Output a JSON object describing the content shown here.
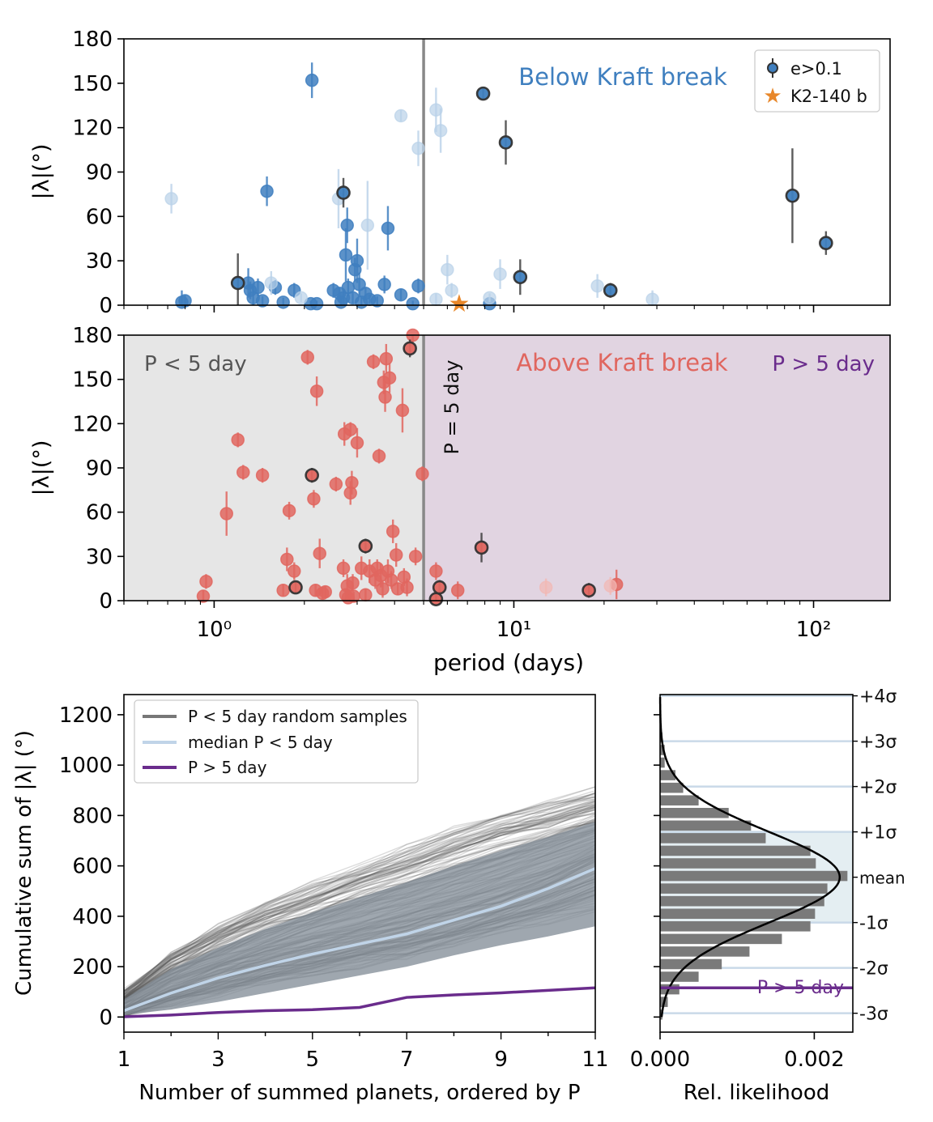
{
  "chart_data": [
    {
      "type": "scatter",
      "panel": "top",
      "xscale": "log",
      "xlim": [
        0.5,
        180
      ],
      "ylim": [
        0,
        180
      ],
      "ylabel": "|λ|(°)",
      "yticks": [
        "0",
        "30",
        "60",
        "90",
        "120",
        "150",
        "180"
      ],
      "annotations": {
        "title": "Below Kraft break"
      },
      "legend": {
        "placement": "top-right",
        "items": [
          "e>0.1",
          "K2-140 b"
        ]
      },
      "vline_x": 5,
      "colors": {
        "points": "#3f7fbf",
        "faded": "#b9d1e8",
        "eccentric_edge": "#333333",
        "star": "#e8872a"
      },
      "series": [
        {
          "name": "main",
          "points": [
            {
              "x": 0.78,
              "y": 2,
              "e": 8
            },
            {
              "x": 0.8,
              "y": 3,
              "e": 4
            },
            {
              "x": 1.3,
              "y": 15,
              "e": 10
            },
            {
              "x": 1.32,
              "y": 10,
              "e": 6
            },
            {
              "x": 1.35,
              "y": 5,
              "e": 8
            },
            {
              "x": 1.4,
              "y": 12,
              "e": 6
            },
            {
              "x": 1.45,
              "y": 3,
              "e": 3
            },
            {
              "x": 1.5,
              "y": 77,
              "e": 10
            },
            {
              "x": 1.6,
              "y": 12,
              "e": 5
            },
            {
              "x": 1.7,
              "y": 2,
              "e": 3
            },
            {
              "x": 1.85,
              "y": 10,
              "e": 5
            },
            {
              "x": 2.1,
              "y": 1,
              "e": 2
            },
            {
              "x": 2.12,
              "y": 152,
              "e": 12
            },
            {
              "x": 2.2,
              "y": 1,
              "e": 2
            },
            {
              "x": 2.5,
              "y": 10,
              "e": 5
            },
            {
              "x": 2.62,
              "y": 8,
              "e": 4
            },
            {
              "x": 2.65,
              "y": 2,
              "e": 3
            },
            {
              "x": 2.7,
              "y": 5,
              "e": 4
            },
            {
              "x": 2.75,
              "y": 34,
              "e": 18
            },
            {
              "x": 2.78,
              "y": 54,
              "e": 12
            },
            {
              "x": 2.8,
              "y": 12,
              "e": 6
            },
            {
              "x": 2.9,
              "y": 5,
              "e": 4
            },
            {
              "x": 2.95,
              "y": 24,
              "e": 8
            },
            {
              "x": 3.0,
              "y": 30,
              "e": 15
            },
            {
              "x": 3.05,
              "y": 14,
              "e": 8
            },
            {
              "x": 3.1,
              "y": 2,
              "e": 3
            },
            {
              "x": 3.2,
              "y": 8,
              "e": 4
            },
            {
              "x": 3.3,
              "y": 4,
              "e": 3
            },
            {
              "x": 3.5,
              "y": 3,
              "e": 3
            },
            {
              "x": 3.7,
              "y": 14,
              "e": 6
            },
            {
              "x": 3.8,
              "y": 52,
              "e": 15
            },
            {
              "x": 4.2,
              "y": 7,
              "e": 4
            },
            {
              "x": 4.6,
              "y": 1,
              "e": 2
            },
            {
              "x": 4.8,
              "y": 13,
              "e": 5
            },
            {
              "x": 8.3,
              "y": 1,
              "e": 3
            }
          ]
        },
        {
          "name": "faded",
          "points": [
            {
              "x": 0.72,
              "y": 72,
              "e": 10
            },
            {
              "x": 1.55,
              "y": 15,
              "e": 8
            },
            {
              "x": 1.95,
              "y": 5,
              "e": 3
            },
            {
              "x": 2.6,
              "y": 72,
              "e": 20
            },
            {
              "x": 3.25,
              "y": 54,
              "e": 30
            },
            {
              "x": 4.2,
              "y": 128,
              "e": 4
            },
            {
              "x": 4.8,
              "y": 106,
              "e": 12
            },
            {
              "x": 5.5,
              "y": 132,
              "e": 15
            },
            {
              "x": 5.7,
              "y": 118,
              "e": 15
            },
            {
              "x": 5.5,
              "y": 4,
              "e": 4
            },
            {
              "x": 6.0,
              "y": 24,
              "e": 10
            },
            {
              "x": 6.2,
              "y": 10,
              "e": 5
            },
            {
              "x": 9.0,
              "y": 21,
              "e": 10
            },
            {
              "x": 19,
              "y": 13,
              "e": 8
            },
            {
              "x": 29,
              "y": 4,
              "e": 6
            },
            {
              "x": 8.3,
              "y": 5,
              "e": 3
            }
          ]
        },
        {
          "name": "e>0.1",
          "points": [
            {
              "x": 1.2,
              "y": 15,
              "e": 20
            },
            {
              "x": 2.7,
              "y": 76,
              "e": 10
            },
            {
              "x": 7.9,
              "y": 143,
              "e": 4
            },
            {
              "x": 9.4,
              "y": 110,
              "e": 15
            },
            {
              "x": 10.5,
              "y": 19,
              "e": 12
            },
            {
              "x": 21,
              "y": 10,
              "e": 5
            },
            {
              "x": 85,
              "y": 74,
              "e": 32
            },
            {
              "x": 110,
              "y": 42,
              "e": 8
            }
          ]
        },
        {
          "name": "K2-140 b",
          "points": [
            {
              "x": 6.57,
              "y": 1,
              "e": 4
            }
          ]
        }
      ]
    },
    {
      "type": "scatter",
      "panel": "middle",
      "xscale": "log",
      "xlim": [
        0.5,
        180
      ],
      "ylim": [
        0,
        180
      ],
      "xlabel": "period (days)",
      "ylabel": "|λ|(°)",
      "xticks": [
        "10⁰",
        "10¹",
        "10²"
      ],
      "yticks": [
        "0",
        "30",
        "60",
        "90",
        "120",
        "150",
        "180"
      ],
      "annotations": {
        "left": "P < 5 day",
        "center": "Above Kraft break",
        "right": "P > 5 day",
        "vline": "P = 5 day"
      },
      "vline_x": 5,
      "colors": {
        "points": "#e0665f",
        "faded": "#f2b8b4",
        "eccentric_edge": "#333333",
        "shade_left": "#e6e6e6",
        "shade_right": "#e1d4e1",
        "label_right": "#6a2c8c"
      },
      "series": [
        {
          "name": "main",
          "points": [
            {
              "x": 0.92,
              "y": 3,
              "e": 4
            },
            {
              "x": 0.94,
              "y": 13,
              "e": 5
            },
            {
              "x": 1.1,
              "y": 59,
              "e": 15
            },
            {
              "x": 1.2,
              "y": 109,
              "e": 5
            },
            {
              "x": 1.25,
              "y": 87,
              "e": 5
            },
            {
              "x": 1.45,
              "y": 85,
              "e": 5
            },
            {
              "x": 1.7,
              "y": 7,
              "e": 4
            },
            {
              "x": 1.75,
              "y": 28,
              "e": 8
            },
            {
              "x": 1.78,
              "y": 61,
              "e": 6
            },
            {
              "x": 1.85,
              "y": 20,
              "e": 6
            },
            {
              "x": 2.05,
              "y": 165,
              "e": 5
            },
            {
              "x": 2.15,
              "y": 69,
              "e": 6
            },
            {
              "x": 2.18,
              "y": 7,
              "e": 4
            },
            {
              "x": 2.2,
              "y": 142,
              "e": 10
            },
            {
              "x": 2.25,
              "y": 32,
              "e": 10
            },
            {
              "x": 2.3,
              "y": 5,
              "e": 4
            },
            {
              "x": 2.35,
              "y": 6,
              "e": 4
            },
            {
              "x": 2.55,
              "y": 79,
              "e": 5
            },
            {
              "x": 2.7,
              "y": 22,
              "e": 6
            },
            {
              "x": 2.72,
              "y": 113,
              "e": 8
            },
            {
              "x": 2.75,
              "y": 4,
              "e": 4
            },
            {
              "x": 2.78,
              "y": 10,
              "e": 8
            },
            {
              "x": 2.8,
              "y": 2,
              "e": 5
            },
            {
              "x": 2.85,
              "y": 116,
              "e": 5
            },
            {
              "x": 2.85,
              "y": 73,
              "e": 8
            },
            {
              "x": 2.88,
              "y": 80,
              "e": 8
            },
            {
              "x": 2.9,
              "y": 12,
              "e": 6
            },
            {
              "x": 2.92,
              "y": 3,
              "e": 3
            },
            {
              "x": 3.0,
              "y": 107,
              "e": 10
            },
            {
              "x": 3.1,
              "y": 22,
              "e": 8
            },
            {
              "x": 3.2,
              "y": 4,
              "e": 4
            },
            {
              "x": 3.3,
              "y": 20,
              "e": 8
            },
            {
              "x": 3.4,
              "y": 162,
              "e": 5
            },
            {
              "x": 3.45,
              "y": 14,
              "e": 6
            },
            {
              "x": 3.5,
              "y": 22,
              "e": 6
            },
            {
              "x": 3.55,
              "y": 98,
              "e": 5
            },
            {
              "x": 3.6,
              "y": 17,
              "e": 8
            },
            {
              "x": 3.65,
              "y": 8,
              "e": 6
            },
            {
              "x": 3.68,
              "y": 148,
              "e": 8
            },
            {
              "x": 3.72,
              "y": 138,
              "e": 10
            },
            {
              "x": 3.75,
              "y": 164,
              "e": 10
            },
            {
              "x": 3.8,
              "y": 20,
              "e": 8
            },
            {
              "x": 3.85,
              "y": 151,
              "e": 10
            },
            {
              "x": 3.9,
              "y": 14,
              "e": 6
            },
            {
              "x": 3.95,
              "y": 47,
              "e": 8
            },
            {
              "x": 4.05,
              "y": 31,
              "e": 8
            },
            {
              "x": 4.1,
              "y": 8,
              "e": 4
            },
            {
              "x": 4.25,
              "y": 129,
              "e": 15
            },
            {
              "x": 4.3,
              "y": 16,
              "e": 6
            },
            {
              "x": 4.4,
              "y": 9,
              "e": 6
            },
            {
              "x": 4.6,
              "y": 180,
              "e": 5
            },
            {
              "x": 4.7,
              "y": 30,
              "e": 6
            },
            {
              "x": 4.95,
              "y": 86,
              "e": 5
            },
            {
              "x": 5.5,
              "y": 20,
              "e": 6
            },
            {
              "x": 6.5,
              "y": 7,
              "e": 6
            },
            {
              "x": 22,
              "y": 11,
              "e": 10
            }
          ]
        },
        {
          "name": "faded",
          "points": [
            {
              "x": 12.8,
              "y": 9,
              "e": 6
            },
            {
              "x": 21,
              "y": 10,
              "e": 6
            }
          ]
        },
        {
          "name": "e>0.1",
          "points": [
            {
              "x": 1.87,
              "y": 9,
              "e": 4
            },
            {
              "x": 2.12,
              "y": 85,
              "e": 5
            },
            {
              "x": 3.2,
              "y": 37,
              "e": 5
            },
            {
              "x": 4.5,
              "y": 171,
              "e": 6
            },
            {
              "x": 5.5,
              "y": 1,
              "e": 4
            },
            {
              "x": 5.65,
              "y": 9,
              "e": 5
            },
            {
              "x": 7.8,
              "y": 36,
              "e": 10
            },
            {
              "x": 17.8,
              "y": 7,
              "e": 5
            }
          ]
        }
      ]
    },
    {
      "type": "line",
      "panel": "bottom-left",
      "xlim": [
        1,
        11
      ],
      "ylim": [
        -60,
        1280
      ],
      "xlabel": "Number of summed planets, ordered by P",
      "ylabel": "Cumulative sum of |λ|  (°)",
      "xticks": [
        "1",
        "3",
        "5",
        "7",
        "9",
        "11"
      ],
      "yticks": [
        "0",
        "200",
        "400",
        "600",
        "800",
        "1000",
        "1200"
      ],
      "legend": {
        "placement": "top-left",
        "items": [
          "P < 5 day random samples",
          "median P < 5 day",
          "P > 5 day"
        ]
      },
      "colors": {
        "samples": "#555555",
        "band": "#7f8a94",
        "median": "#c0d4e8",
        "observed": "#6a2c8c"
      },
      "x": [
        1,
        2,
        3,
        4,
        5,
        6,
        7,
        8,
        9,
        10,
        11
      ],
      "series": [
        {
          "name": "median P < 5 day",
          "values": [
            25,
            95,
            155,
            205,
            250,
            290,
            330,
            385,
            440,
            510,
            590
          ]
        },
        {
          "name": "band_upper",
          "values": [
            70,
            190,
            275,
            350,
            415,
            475,
            535,
            600,
            660,
            715,
            775
          ]
        },
        {
          "name": "band_lower",
          "values": [
            8,
            30,
            60,
            95,
            130,
            165,
            200,
            245,
            285,
            320,
            360
          ]
        },
        {
          "name": "P > 5 day",
          "values": [
            1,
            8,
            18,
            25,
            29,
            38,
            78,
            88,
            96,
            106,
            116
          ]
        }
      ]
    },
    {
      "type": "bar",
      "panel": "bottom-right",
      "orientation": "horizontal",
      "xlabel": "Rel. likelihood",
      "xlim": [
        0,
        0.0025
      ],
      "xticks": [
        "0.000",
        "0.002"
      ],
      "sigma_labels": [
        "+4σ",
        "+3σ",
        "+2σ",
        "+1σ",
        "mean",
        "-1σ",
        "-2σ",
        "-3σ"
      ],
      "annotations": {
        "observed": "P > 5 day"
      },
      "colors": {
        "bars": "#7a7a7a",
        "curve": "#000000",
        "sigma_band": "#e4eef2",
        "sigma_lines": "#c9d9e8",
        "observed": "#6a2c8c"
      },
      "bin_centers": [
        1160,
        1110,
        1060,
        1010,
        960,
        910,
        860,
        810,
        760,
        710,
        660,
        610,
        560,
        510,
        460,
        410,
        360,
        310,
        260,
        210,
        160,
        110,
        60,
        10
      ],
      "values": [
        1e-05,
        3e-05,
        6e-05,
        6e-05,
        0.0002,
        0.0003,
        0.0005,
        0.00089,
        0.00118,
        0.00137,
        0.00195,
        0.00202,
        0.00243,
        0.00217,
        0.00213,
        0.00201,
        0.00195,
        0.00158,
        0.00116,
        0.0008,
        0.0005,
        0.00025,
        0.0001,
        3e-05
      ],
      "gaussian": {
        "mean": 555,
        "sd": 180,
        "peak": 0.00233
      },
      "observed_value": 116
    }
  ]
}
